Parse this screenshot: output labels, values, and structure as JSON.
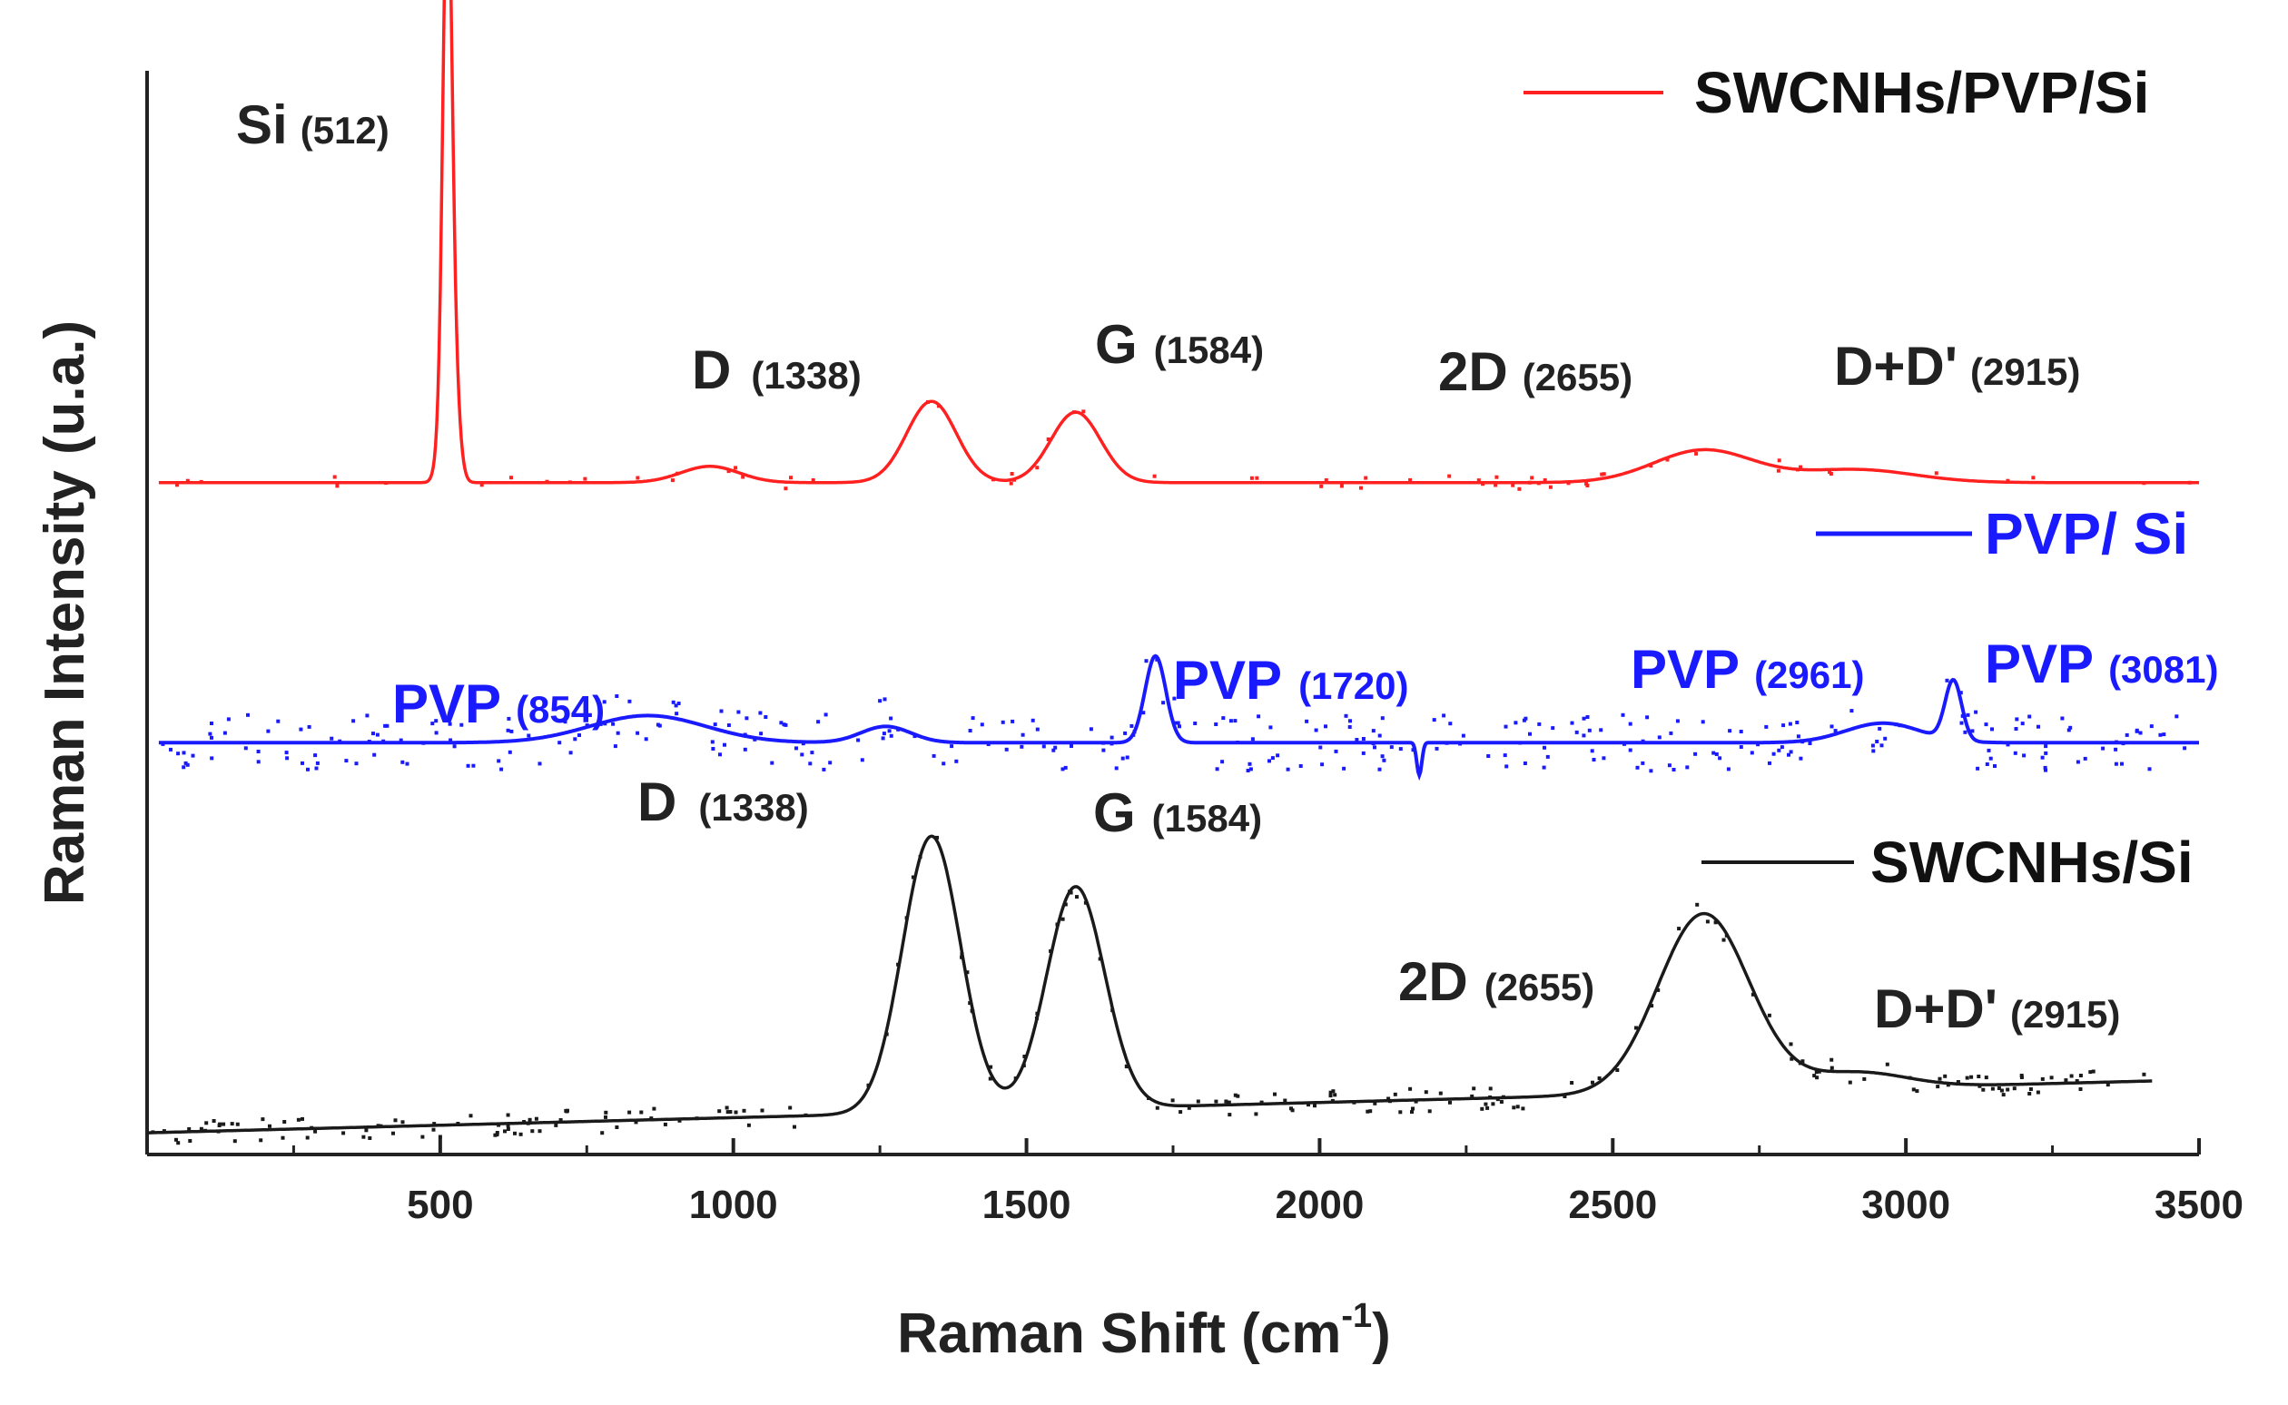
{
  "chart_data": {
    "type": "line",
    "title": "",
    "xlabel": "Raman Shift (cm",
    "xlabel_sup": "-1",
    "xlabel_close": ")",
    "ylabel": "Raman Intensity (u.a.)",
    "xlim": [
      0,
      3500
    ],
    "ylim": [
      0,
      100
    ],
    "grid": false,
    "x_ticks": [
      500,
      1000,
      1500,
      2000,
      2500,
      3000,
      3500
    ],
    "x_ticks_minor": [
      250,
      750,
      1250,
      1750,
      2250,
      2750,
      3250
    ],
    "colors": {
      "red": "#ff2020",
      "blue": "#1a1aff",
      "black": "#1a1a1a"
    },
    "series": [
      {
        "name": "SWCNHs/PVP/Si",
        "color": "#ff2020",
        "baseline": 62,
        "x_range": [
          20,
          3500
        ],
        "tilt": 0,
        "peaks": [
          {
            "x": 512,
            "h": 36,
            "w": 10
          },
          {
            "x": 515,
            "h": 22,
            "w": 16
          },
          {
            "x": 960,
            "h": 1.5,
            "w": 70
          },
          {
            "x": 1338,
            "h": 7.5,
            "w": 60
          },
          {
            "x": 1584,
            "h": 6.5,
            "w": 60
          },
          {
            "x": 2655,
            "h": 3.0,
            "w": 120
          },
          {
            "x": 2915,
            "h": 1.2,
            "w": 140
          }
        ],
        "scatter_noise": 0.6,
        "scatter_count": 70
      },
      {
        "name": "PVP/Si",
        "color": "#1a1aff",
        "baseline": 38,
        "x_range": [
          20,
          3500
        ],
        "tilt": 0,
        "peaks": [
          {
            "x": 854,
            "h": 2.5,
            "w": 140
          },
          {
            "x": 1260,
            "h": 1.5,
            "w": 60
          },
          {
            "x": 1720,
            "h": 8.0,
            "w": 25
          },
          {
            "x": 2961,
            "h": 1.8,
            "w": 90
          },
          {
            "x": 3081,
            "h": 5.5,
            "w": 20
          }
        ],
        "dips": [
          {
            "x": 2170,
            "h": 3.0,
            "w": 6
          }
        ],
        "scatter_noise": 2.6,
        "scatter_count": 340
      },
      {
        "name": "SWCNHs/Si",
        "color": "#1a1a1a",
        "baseline": 2,
        "x_range": [
          0,
          3420
        ],
        "tilt": 0.0014,
        "peaks": [
          {
            "x": 1338,
            "h": 25.5,
            "w": 70
          },
          {
            "x": 1584,
            "h": 20.5,
            "w": 70
          },
          {
            "x": 2655,
            "h": 16.5,
            "w": 110
          },
          {
            "x": 2915,
            "h": 1.5,
            "w": 120
          }
        ],
        "scatter_noise": 1.1,
        "scatter_count": 240
      }
    ],
    "annotations": [
      {
        "key": "si",
        "main": "Si",
        "sub": "(512)",
        "color": "#222"
      },
      {
        "key": "d_red",
        "main": "D",
        "sub": "(1338)",
        "color": "#222"
      },
      {
        "key": "g_red",
        "main": "G",
        "sub": "(1584)",
        "color": "#222"
      },
      {
        "key": "2d_red",
        "main": "2D",
        "sub": "(2655)",
        "color": "#222"
      },
      {
        "key": "dd_red",
        "main": "D+D'",
        "sub": "(2915)",
        "color": "#222"
      },
      {
        "key": "pvp854",
        "main": "PVP",
        "sub": "(854)",
        "color": "#1a1aff"
      },
      {
        "key": "pvp1720",
        "main": "PVP",
        "sub": "(1720)",
        "color": "#1a1aff"
      },
      {
        "key": "pvp2961",
        "main": "PVP",
        "sub": "(2961)",
        "color": "#1a1aff"
      },
      {
        "key": "pvp3081",
        "main": "PVP",
        "sub": "(3081)",
        "color": "#1a1aff"
      },
      {
        "key": "d_black",
        "main": "D",
        "sub": "(1338)",
        "color": "#222"
      },
      {
        "key": "g_black",
        "main": "G",
        "sub": "(1584)",
        "color": "#222"
      },
      {
        "key": "2d_black",
        "main": "2D",
        "sub": "(2655)",
        "color": "#222"
      },
      {
        "key": "dd_black",
        "main": "D+D'",
        "sub": "(2915)",
        "color": "#222"
      }
    ],
    "legend": [
      {
        "label": "SWCNHs/PVP/Si",
        "color": "#ff2020"
      },
      {
        "label": "PVP/ Si",
        "color": "#1a1aff"
      },
      {
        "label": "SWCNHs/Si",
        "color": "#1a1a1a"
      }
    ]
  }
}
